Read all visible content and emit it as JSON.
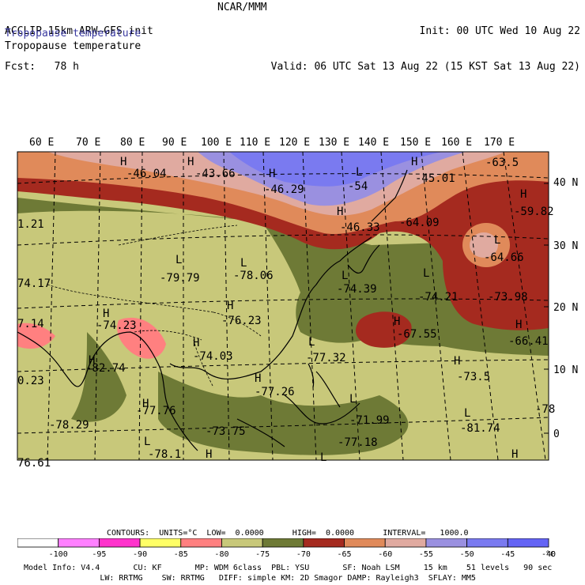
{
  "header": {
    "model": "ACCLIP 15km ARW–GFS init",
    "forecast": "Fcst:   78 h",
    "center": "NCAR/MMM",
    "init": "Init: 00 UTC Wed 10 Aug 22",
    "valid": "Valid: 06 UTC Sat 13 Aug 22 (15 KST Sat 13 Aug 22)"
  },
  "field_title_1": "Tropopause temperature",
  "field_title_2": "Tropopause temperature",
  "lon_labels": [
    "60 E",
    "70 E",
    "80 E",
    "90 E",
    "100 E",
    "110 E",
    "120 E",
    "130 E",
    "140 E",
    "150 E",
    "160 E",
    "170 E"
  ],
  "lat_labels": [
    "40 N",
    "30 N",
    "20 N",
    "10 N",
    "0"
  ],
  "map_annotations": [
    {
      "t": "H"
    },
    {
      "t": "-46.04"
    },
    {
      "t": "H"
    },
    {
      "t": "-43.66"
    },
    {
      "t": "H"
    },
    {
      "t": "-46.29"
    },
    {
      "t": "L"
    },
    {
      "t": "-54"
    },
    {
      "t": "H"
    },
    {
      "t": "-45.01"
    },
    {
      "t": "-63.5"
    },
    {
      "t": "H"
    },
    {
      "t": "-59.82"
    },
    {
      "t": "H"
    },
    {
      "t": "-46.33"
    },
    {
      "t": "-64.09"
    },
    {
      "t": "L"
    },
    {
      "t": "-64.66"
    },
    {
      "t": "1.21"
    },
    {
      "t": "L"
    },
    {
      "t": "-79.79"
    },
    {
      "t": "L"
    },
    {
      "t": "-78.06"
    },
    {
      "t": "74.17"
    },
    {
      "t": "L"
    },
    {
      "t": "-74.39"
    },
    {
      "t": "L"
    },
    {
      "t": "-74.21"
    },
    {
      "t": "-73.98"
    },
    {
      "t": "H"
    },
    {
      "t": "-76.23"
    },
    {
      "t": "H"
    },
    {
      "t": "-74.23"
    },
    {
      "t": "7.14"
    },
    {
      "t": "H"
    },
    {
      "t": "-67.55"
    },
    {
      "t": "H"
    },
    {
      "t": "-66.41"
    },
    {
      "t": "H"
    },
    {
      "t": "-74.03"
    },
    {
      "t": "L"
    },
    {
      "t": "-77.32"
    },
    {
      "t": "H"
    },
    {
      "t": "-82.74"
    },
    {
      "t": "H"
    },
    {
      "t": "-73.5"
    },
    {
      "t": "0.23"
    },
    {
      "t": "H"
    },
    {
      "t": "-77.26"
    },
    {
      "t": "H"
    },
    {
      "t": "-77.76"
    },
    {
      "t": "L"
    },
    {
      "t": "-71.99"
    },
    {
      "t": "L"
    },
    {
      "t": "-81.74"
    },
    {
      "t": "-78"
    },
    {
      "t": "-78.29"
    },
    {
      "t": "-73.75"
    },
    {
      "t": "L"
    },
    {
      "t": "-78.1"
    },
    {
      "t": "H"
    },
    {
      "t": "-77.18"
    },
    {
      "t": "L"
    },
    {
      "t": "H"
    },
    {
      "t": "76.61"
    }
  ],
  "contours_line": "CONTOURS:  UNITS=°C  LOW=  0.0000      HIGH=  0.0000      INTERVAL=   1000.0",
  "legend": {
    "colors": [
      "#ffffff",
      "#ff80ff",
      "#ff33cc",
      "#ffff66",
      "#ff8080",
      "#c8c87a",
      "#6e7a36",
      "#a52a1f",
      "#e08a5a",
      "#e0aaa0",
      "#9a90e0",
      "#7a7af0",
      "#6464f5"
    ],
    "labels": [
      "-100",
      "-95",
      "-90",
      "-85",
      "-80",
      "-75",
      "-70",
      "-65",
      "-60",
      "-55",
      "-50",
      "-45",
      "-40"
    ],
    "unit": "°C"
  },
  "model_info": {
    "line1": "Model Info: V4.4       CU: KF       MP: WDM 6class  PBL: YSU       SF: Noah LSM     15 km    51 levels   90 sec",
    "line2": "                LW: RRTMG    SW: RRTMG   DIFF: simple KM: 2D Smagor DAMP: Rayleigh3  SFLAY: MM5"
  }
}
